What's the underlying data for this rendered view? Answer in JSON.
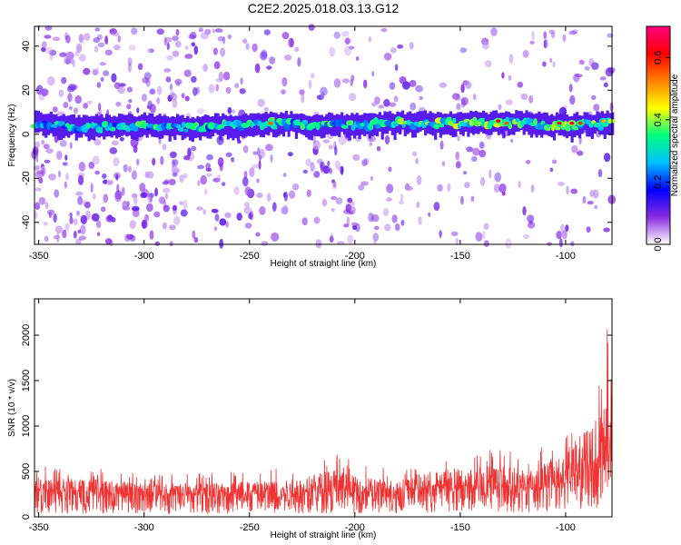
{
  "title": "C2E2.2025.018.03.13.G12",
  "chart_data": [
    {
      "type": "heatmap",
      "xlabel": "Height of straight line (km)",
      "ylabel": "Frequency (Hz)",
      "xlim": [
        -352,
        -78
      ],
      "ylim": [
        -50,
        49
      ],
      "xticks": [
        -350,
        -300,
        -250,
        -200,
        -150,
        -100
      ],
      "yticks": [
        -40,
        -20,
        0,
        20,
        40
      ],
      "colorbar": {
        "label": "Normalized spectral amplitude",
        "range": [
          0,
          0.7
        ],
        "ticks": [
          0.0,
          0.2,
          0.4,
          0.6
        ],
        "colormap": [
          "#ffffff",
          "#8a2be2",
          "#0000ff",
          "#00c0ff",
          "#00ff80",
          "#ffff00",
          "#ff8000",
          "#ff0000",
          "#ff0080"
        ]
      },
      "signal_band": {
        "center_hz": [
          [
            -350,
            5
          ],
          [
            -330,
            3
          ],
          [
            -300,
            4
          ],
          [
            -280,
            3
          ],
          [
            -260,
            4
          ],
          [
            -240,
            5
          ],
          [
            -220,
            4
          ],
          [
            -200,
            4
          ],
          [
            -180,
            5
          ],
          [
            -160,
            5
          ],
          [
            -140,
            5
          ],
          [
            -120,
            5
          ],
          [
            -100,
            4
          ],
          [
            -80,
            5
          ]
        ],
        "halfwidth_hz": 4,
        "peak_points": [
          {
            "x": -240,
            "y": 5,
            "value": 0.55
          },
          {
            "x": -132,
            "y": 6,
            "value": 0.62
          },
          {
            "x": -128,
            "y": 5,
            "value": 0.55
          },
          {
            "x": -103,
            "y": 5,
            "value": 0.6
          },
          {
            "x": -97,
            "y": 5,
            "value": 0.65
          },
          {
            "x": -93,
            "y": 5,
            "value": 0.58
          },
          {
            "x": -82,
            "y": 6,
            "value": 0.5
          }
        ]
      },
      "noise_density": [
        [
          -350,
          0.55
        ],
        [
          -330,
          0.7
        ],
        [
          -300,
          0.75
        ],
        [
          -280,
          0.65
        ],
        [
          -260,
          0.45
        ],
        [
          -240,
          0.4
        ],
        [
          -220,
          0.45
        ],
        [
          -200,
          0.55
        ],
        [
          -180,
          0.35
        ],
        [
          -160,
          0.3
        ],
        [
          -140,
          0.3
        ],
        [
          -120,
          0.25
        ],
        [
          -100,
          0.3
        ],
        [
          -80,
          0.35
        ]
      ]
    },
    {
      "type": "line",
      "xlabel": "Height of straight line (km)",
      "ylabel": "SNR (10 * v/v)",
      "xlim": [
        -352,
        -78
      ],
      "ylim": [
        0,
        2400
      ],
      "xticks": [
        -350,
        -300,
        -250,
        -200,
        -150,
        -100
      ],
      "yticks": [
        0,
        500,
        1000,
        1500,
        2000
      ],
      "series": [
        {
          "color": "#f03232",
          "envelope": [
            [
              -350,
              120,
              330,
              560
            ],
            [
              -325,
              110,
              300,
              540
            ],
            [
              -300,
              100,
              270,
              480
            ],
            [
              -275,
              100,
              270,
              480
            ],
            [
              -250,
              110,
              290,
              520
            ],
            [
              -225,
              120,
              310,
              560
            ],
            [
              -210,
              130,
              340,
              740
            ],
            [
              -200,
              120,
              300,
              600
            ],
            [
              -180,
              110,
              290,
              520
            ],
            [
              -165,
              150,
              360,
              650
            ],
            [
              -150,
              160,
              380,
              720
            ],
            [
              -130,
              170,
              380,
              780
            ],
            [
              -115,
              150,
              360,
              700
            ],
            [
              -105,
              200,
              440,
              900
            ],
            [
              -95,
              250,
              520,
              1200
            ],
            [
              -88,
              300,
              620,
              1450
            ],
            [
              -83,
              350,
              700,
              1600
            ],
            [
              -79,
              400,
              900,
              2380
            ]
          ]
        }
      ]
    }
  ]
}
